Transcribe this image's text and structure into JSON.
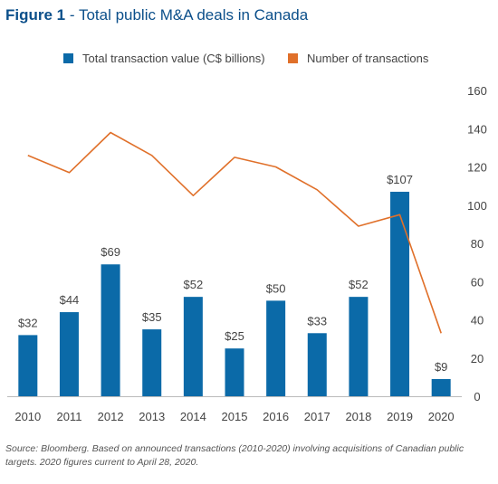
{
  "title": {
    "prefix": "Figure 1",
    "separator": " - ",
    "text": "Total public M&A deals in Canada"
  },
  "chart_data": {
    "type": "bar+line",
    "categories": [
      "2010",
      "2011",
      "2012",
      "2013",
      "2014",
      "2015",
      "2016",
      "2017",
      "2018",
      "2019",
      "2020"
    ],
    "series": [
      {
        "name": "Total transaction value (C$ billions)",
        "type": "bar",
        "color": "#0b6aa8",
        "values": [
          32,
          44,
          69,
          35,
          52,
          25,
          50,
          33,
          52,
          107,
          9
        ],
        "data_labels": [
          "$32",
          "$44",
          "$69",
          "$35",
          "$52",
          "$25",
          "$50",
          "$33",
          "$52",
          "$107",
          "$9"
        ]
      },
      {
        "name": "Number of transactions",
        "type": "line",
        "color": "#e0702a",
        "values": [
          126,
          117,
          138,
          126,
          105,
          125,
          120,
          108,
          89,
          95,
          33
        ]
      }
    ],
    "y_axis": {
      "side": "right",
      "ylim": [
        0,
        160
      ],
      "ticks": [
        "0",
        "20",
        "40",
        "60",
        "80",
        "100",
        "120",
        "140",
        "160"
      ]
    },
    "legend_position": "top",
    "grid": false
  },
  "source": "Source: Bloomberg. Based on announced transactions (2010-2020) involving acquisitions of Canadian public targets. 2020 figures current to April 28, 2020."
}
